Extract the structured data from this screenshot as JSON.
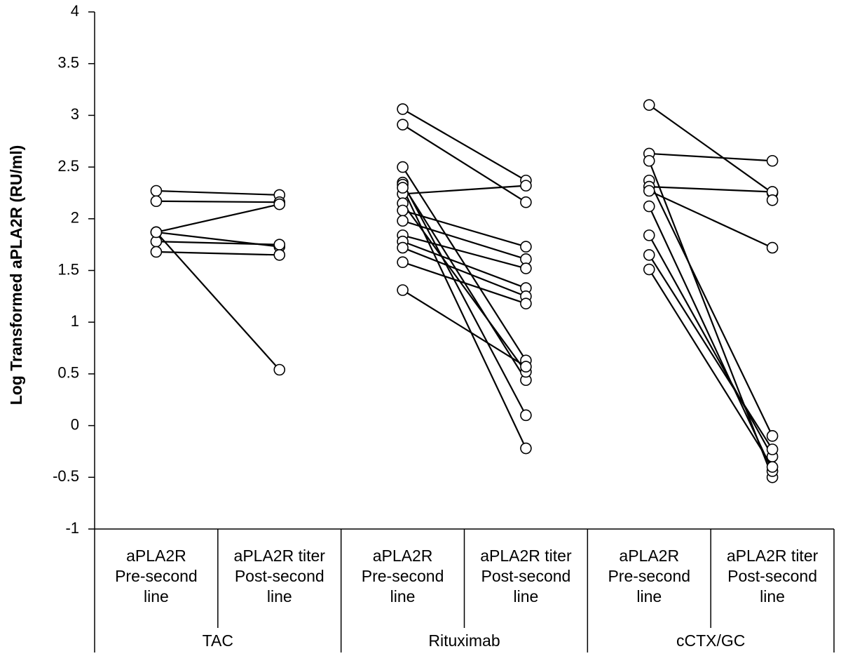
{
  "chart_data": {
    "type": "line",
    "ylabel": "Log Transformed aPLA2R (RU/ml)",
    "ylim": [
      -1,
      4
    ],
    "yticks": [
      {
        "value": -1,
        "label": "-1"
      },
      {
        "value": -0.5,
        "label": "-0.5"
      },
      {
        "value": 0,
        "label": "0"
      },
      {
        "value": 0.5,
        "label": "0.5"
      },
      {
        "value": 1,
        "label": "1"
      },
      {
        "value": 1.5,
        "label": "1.5"
      },
      {
        "value": 2,
        "label": "2"
      },
      {
        "value": 2.5,
        "label": "2.5"
      },
      {
        "value": 3,
        "label": "3"
      },
      {
        "value": 3.5,
        "label": "3.5"
      },
      {
        "value": 4,
        "label": "4"
      }
    ],
    "categories": [
      {
        "lines": [
          "aPLA2R",
          "Pre-second",
          "line"
        ]
      },
      {
        "lines": [
          "aPLA2R titer",
          "Post-second",
          "line"
        ]
      },
      {
        "lines": [
          "aPLA2R",
          "Pre-second",
          "line"
        ]
      },
      {
        "lines": [
          "aPLA2R titer",
          "Post-second",
          "line"
        ]
      },
      {
        "lines": [
          "aPLA2R",
          "Pre-second",
          "line"
        ]
      },
      {
        "lines": [
          "aPLA2R titer",
          "Post-second",
          "line"
        ]
      }
    ],
    "groups": [
      {
        "name": "TAC",
        "pairs": [
          {
            "pre": 2.27,
            "post": 2.23
          },
          {
            "pre": 2.17,
            "post": 2.16
          },
          {
            "pre": 1.87,
            "post": 2.14
          },
          {
            "pre": 1.87,
            "post": 1.73
          },
          {
            "pre": 1.78,
            "post": 1.75
          },
          {
            "pre": 1.68,
            "post": 1.65
          },
          {
            "pre": 1.87,
            "post": 0.54
          }
        ]
      },
      {
        "name": "Rituximab",
        "pairs": [
          {
            "pre": 3.06,
            "post": 2.37
          },
          {
            "pre": 2.91,
            "post": 2.16
          },
          {
            "pre": 2.5,
            "post": 0.63
          },
          {
            "pre": 2.35,
            "post": 0.1
          },
          {
            "pre": 2.33,
            "post": 0.44
          },
          {
            "pre": 2.24,
            "post": 2.32
          },
          {
            "pre": 2.3,
            "post": -0.22
          },
          {
            "pre": 2.15,
            "post": 0.52
          },
          {
            "pre": 2.08,
            "post": 1.73
          },
          {
            "pre": 1.98,
            "post": 1.61
          },
          {
            "pre": 1.84,
            "post": 1.52
          },
          {
            "pre": 1.78,
            "post": 1.33
          },
          {
            "pre": 1.72,
            "post": 1.25
          },
          {
            "pre": 1.58,
            "post": 1.18
          },
          {
            "pre": 1.31,
            "post": 0.57
          }
        ]
      },
      {
        "name": "cCTX/GC",
        "pairs": [
          {
            "pre": 3.1,
            "post": 2.25
          },
          {
            "pre": 2.63,
            "post": 2.56
          },
          {
            "pre": 2.56,
            "post": -0.5
          },
          {
            "pre": 2.37,
            "post": -0.1
          },
          {
            "pre": 2.31,
            "post": 2.26
          },
          {
            "pre": 2.27,
            "post": 1.72
          },
          {
            "pre": 2.12,
            "post": -0.44
          },
          {
            "pre": 1.84,
            "post": -0.3
          },
          {
            "pre": 1.65,
            "post": -0.23
          },
          {
            "pre": 1.51,
            "post": -0.4
          }
        ]
      }
    ],
    "extra_post_points": [
      {
        "group": 2,
        "value": 2.18
      }
    ],
    "grid": false,
    "legend": "none"
  }
}
